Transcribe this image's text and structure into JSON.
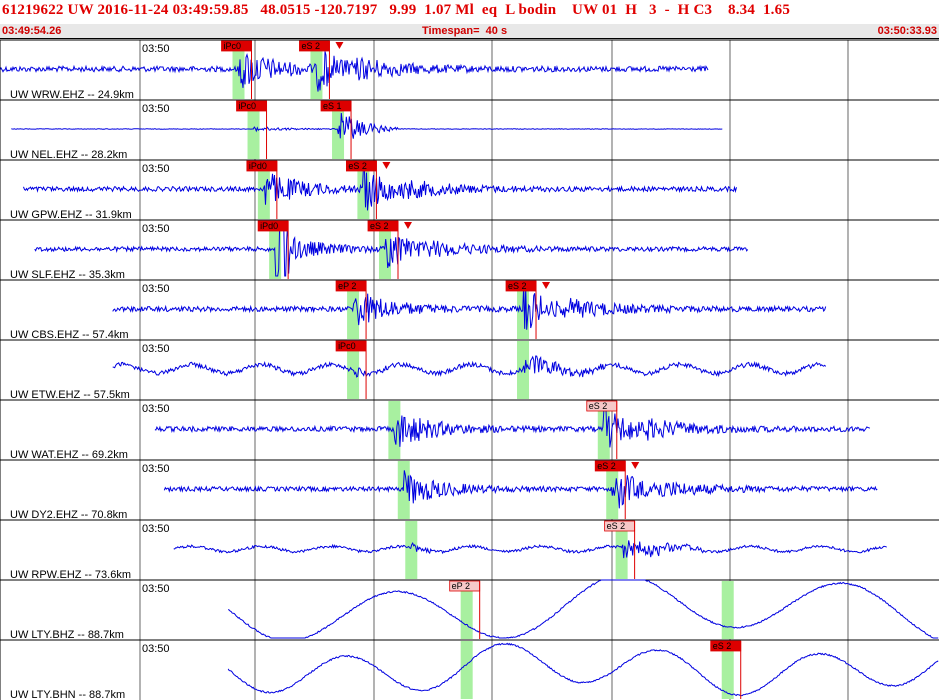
{
  "header": {
    "title": "61219622 UW 2016-11-24 03:49:59.85   48.0515 -120.7197   9.99  1.07 Ml  eq  L bodin    UW 01  H   3  -  H C3    8.34  1.65",
    "start_time": "03:49:54.26",
    "timespan": "Timespan=  40 s",
    "end_time": "03:50:33.93"
  },
  "colors": {
    "trace": "#0000e0",
    "window": "#a8f0a0",
    "pick_fill": "#dd0000",
    "pick_fill_light": "#f6c8c8",
    "pick_line": "#dd0000"
  },
  "channels": [
    {
      "label": "UW WRW.EHZ -- 24.9km",
      "time": "03:50",
      "traceStart": 0.0,
      "traceEnd": 0.755,
      "amp": 0.35,
      "style": "normal",
      "p": {
        "t": 0.254,
        "label": "iPc0",
        "fill": "dark"
      },
      "s": {
        "t": 0.337,
        "label": "eS 2",
        "fill": "dark",
        "arrow": true
      }
    },
    {
      "label": "UW NEL.EHZ -- 28.2km",
      "time": "03:50",
      "traceStart": 0.012,
      "traceEnd": 0.77,
      "amp": 0.22,
      "style": "quietP",
      "p": {
        "t": 0.27,
        "label": "iPc0",
        "fill": "dark"
      },
      "s": {
        "t": 0.36,
        "label": "eS 1",
        "fill": "dark"
      }
    },
    {
      "label": "UW GPW.EHZ -- 31.9km",
      "time": "03:50",
      "traceStart": 0.025,
      "traceEnd": 0.785,
      "amp": 0.3,
      "style": "normal",
      "p": {
        "t": 0.281,
        "label": "iPd0",
        "fill": "dark"
      },
      "s": {
        "t": 0.387,
        "label": "eS 2",
        "fill": "dark",
        "arrow": true
      }
    },
    {
      "label": "UW SLF.EHZ -- 35.3km",
      "time": "03:50",
      "traceStart": 0.037,
      "traceEnd": 0.797,
      "amp": 0.28,
      "style": "spike",
      "p": {
        "t": 0.293,
        "label": "iPd0",
        "fill": "dark"
      },
      "s": {
        "t": 0.41,
        "label": "eS 2",
        "fill": "dark",
        "arrow": true
      }
    },
    {
      "label": "UW CBS.EHZ -- 57.4km",
      "time": "03:50",
      "traceStart": 0.12,
      "traceEnd": 0.88,
      "amp": 0.18,
      "style": "noisy",
      "p": {
        "t": 0.376,
        "label": "eP 2",
        "fill": "dark"
      },
      "s": {
        "t": 0.557,
        "label": "eS 2",
        "fill": "dark",
        "arrow": true
      }
    },
    {
      "label": "UW ETW.EHZ -- 57.5km",
      "time": "03:50",
      "traceStart": 0.12,
      "traceEnd": 0.88,
      "amp": 0.2,
      "style": "wavy",
      "p": {
        "t": 0.376,
        "label": "iPc0",
        "fill": "dark"
      },
      "s": {
        "t": 0.557,
        "label": "",
        "fill": "none"
      }
    },
    {
      "label": "UW WAT.EHZ -- 69.2km",
      "time": "03:50",
      "traceStart": 0.165,
      "traceEnd": 0.927,
      "amp": 0.18,
      "style": "noisy",
      "p": {
        "t": 0.42,
        "label": "",
        "fill": "none"
      },
      "s": {
        "t": 0.643,
        "label": "eS 2",
        "fill": "light"
      }
    },
    {
      "label": "UW DY2.EHZ -- 70.8km",
      "time": "03:50",
      "traceStart": 0.175,
      "traceEnd": 0.935,
      "amp": 0.16,
      "style": "noisy",
      "p": {
        "t": 0.43,
        "label": "",
        "fill": "none"
      },
      "s": {
        "t": 0.652,
        "label": "eS 2",
        "fill": "dark",
        "arrow": true
      }
    },
    {
      "label": "UW RPW.EHZ -- 73.6km",
      "time": "03:50",
      "traceStart": 0.185,
      "traceEnd": 0.945,
      "amp": 0.12,
      "style": "wavy",
      "p": {
        "t": 0.438,
        "label": "",
        "fill": "none"
      },
      "s": {
        "t": 0.662,
        "label": "eS 2",
        "fill": "light"
      }
    },
    {
      "label": "UW LTY.BHZ -- 88.7km",
      "time": "03:50",
      "traceStart": 0.243,
      "traceEnd": 1.0,
      "amp": 0.95,
      "style": "long",
      "p": {
        "t": 0.497,
        "label": "eP 2",
        "fill": "light"
      },
      "s": {
        "t": 0.775,
        "label": "",
        "fill": "none"
      }
    },
    {
      "label": "UW LTY.BHN -- 88.7km",
      "time": "03:50",
      "traceStart": 0.243,
      "traceEnd": 1.0,
      "amp": 0.7,
      "style": "longB",
      "p": {
        "t": 0.497,
        "label": "",
        "fill": "none"
      },
      "s": {
        "t": 0.775,
        "label": "eS 2",
        "fill": "dark"
      }
    }
  ]
}
